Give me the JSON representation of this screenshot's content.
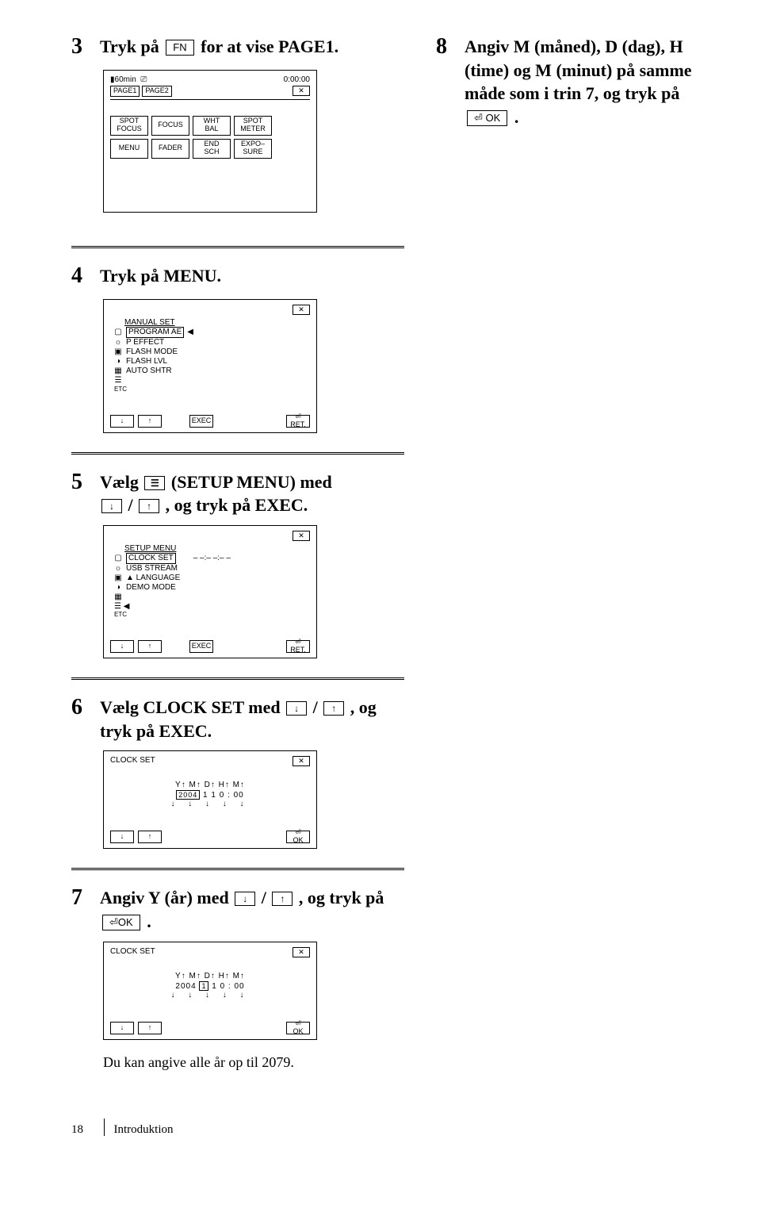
{
  "step3": {
    "num": "3",
    "pre": "Tryk på ",
    "btn": "FN",
    "post": " for at vise PAGE1."
  },
  "step8": {
    "num": "8",
    "text": "Angiv M (måned), D (dag), H (time) og M (minut) på samme måde som i trin 7, og tryk på ",
    "btn": "OK",
    "post": "."
  },
  "lcd1": {
    "time_label": "60min",
    "clock": "0:00:00",
    "page1": "PAGE1",
    "page2": "PAGE2",
    "x": "✕",
    "row1": [
      "SPOT FOCUS",
      "FOCUS",
      "WHT BAL",
      "SPOT METER"
    ],
    "row2": [
      "MENU",
      "FADER",
      "END SCH",
      "EXPO– SURE"
    ]
  },
  "step4": {
    "num": "4",
    "text": "Tryk på MENU."
  },
  "lcd2": {
    "title": "MANUAL SET",
    "x": "✕",
    "items": [
      {
        "sym": "▢",
        "label": "PROGRAM AE",
        "selected": true
      },
      {
        "sym": "☼",
        "label": "P EFFECT"
      },
      {
        "sym": "▣",
        "label": "FLASH MODE"
      },
      {
        "sym": "◑",
        "label": "FLASH LVL"
      },
      {
        "sym": "▦",
        "label": "AUTO SHTR"
      },
      {
        "sym": "☰",
        "label": ""
      }
    ],
    "etc": "ETC",
    "b_down": "↓",
    "b_up": "↑",
    "b_exec": "EXEC",
    "b_ret": "⏎ RET."
  },
  "step5": {
    "num": "5",
    "pre": "Vælg ",
    "icon": "☰",
    "mid": " (SETUP MENU) med ",
    "b1": "↓",
    "slash": " / ",
    "b2": "↑",
    "post": " , og tryk på EXEC."
  },
  "lcd3": {
    "title": "SETUP MENU",
    "x": "✕",
    "items": [
      {
        "sym": "▢",
        "label": "CLOCK SET",
        "selected": true,
        "val": "– –:– –:– –"
      },
      {
        "sym": "☼",
        "label": "USB STREAM"
      },
      {
        "sym": "▣",
        "label": "▲ LANGUAGE"
      },
      {
        "sym": "◑",
        "label": "DEMO MODE"
      },
      {
        "sym": "▦",
        "label": ""
      }
    ],
    "selmark": "◀",
    "etc": "ETC",
    "b_down": "↓",
    "b_up": "↑",
    "b_exec": "EXEC",
    "b_ret": "⏎ RET."
  },
  "step6": {
    "num": "6",
    "pre": "Vælg CLOCK SET med ",
    "b1": "↓",
    "slash": " / ",
    "b2": "↑",
    "post": " , og tryk på EXEC."
  },
  "lcd4": {
    "title": "CLOCK SET",
    "x": "✕",
    "headers": "Y↑    M↑  D↑  H↑  M↑",
    "values_html": "<span class='small-sel'>2004</span>   1    1    0 : 00",
    "arrows": "↓  ↓  ↓  ↓  ↓",
    "b_down": "↓",
    "b_up": "↑",
    "b_ok": "⏎ OK"
  },
  "step7": {
    "num": "7",
    "pre": "Angiv Y (år) med ",
    "b1": "↓",
    "slash": " / ",
    "b2": "↑",
    "mid": " , og tryk på ",
    "btn": "OK",
    "post": "."
  },
  "lcd5": {
    "title": "CLOCK SET",
    "x": "✕",
    "headers": "Y↑    M↑  D↑  H↑  M↑",
    "values_html": "2004  <span class='small-sel'>1</span>    1    0 : 00",
    "arrows": "↓  ↓  ↓  ↓  ↓",
    "b_down": "↓",
    "b_up": "↑",
    "b_ok": "⏎ OK"
  },
  "note": "Du kan angive alle år op til 2079.",
  "footer": {
    "page": "18",
    "section": "Introduktion"
  }
}
